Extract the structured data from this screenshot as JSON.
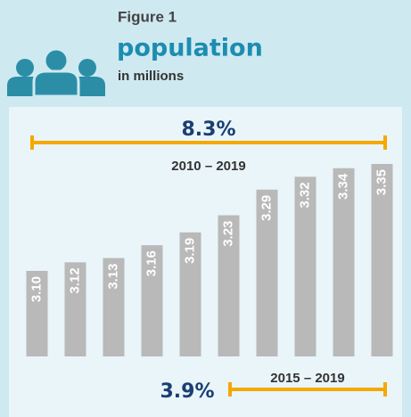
{
  "chart_data": {
    "type": "bar",
    "title": "Figure 1",
    "subtitle": "population",
    "unit_label": "in millions",
    "values": [
      3.1,
      3.12,
      3.13,
      3.16,
      3.19,
      3.23,
      3.29,
      3.32,
      3.34,
      3.35
    ],
    "value_labels": [
      "3.10",
      "3.12",
      "3.13",
      "3.16",
      "3.19",
      "3.23",
      "3.29",
      "3.32",
      "3.34",
      "3.35"
    ],
    "color": "#b9b9b9",
    "ylim": [
      2.9,
      3.35
    ],
    "annotations": [
      "8.3%",
      "2010 – 2019",
      "3.9%",
      "2015 – 2019"
    ]
  }
}
